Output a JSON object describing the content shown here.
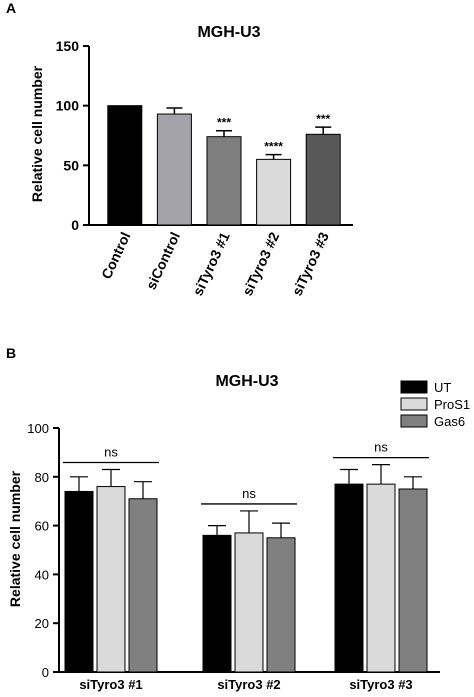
{
  "panels": [
    {
      "letter": "A",
      "chart_data": {
        "type": "bar",
        "title": "MGH-U3",
        "ylabel": "Relative cell number",
        "xlabel": "",
        "categories": [
          "Control",
          "siControl",
          "siTyro3 #1",
          "siTyro3 #2",
          "siTyro3 #3"
        ],
        "values": [
          100,
          93,
          74,
          55,
          76
        ],
        "errors": [
          0,
          5,
          5,
          4,
          6
        ],
        "significance": [
          "",
          "",
          "***",
          "****",
          "***"
        ],
        "colors": [
          "#000000",
          "#a3a3a9",
          "#7e7e7e",
          "#dadada",
          "#585858"
        ],
        "ylim": [
          0,
          150
        ],
        "yticks": [
          0,
          50,
          100,
          150
        ],
        "grid": false
      }
    },
    {
      "letter": "B",
      "chart_data": {
        "type": "bar",
        "title": "MGH-U3",
        "ylabel": "Relative cell number",
        "xlabel": "",
        "categories": [
          "siTyro3 #1",
          "siTyro3 #2",
          "siTyro3 #3"
        ],
        "series": [
          {
            "name": "UT",
            "color": "#000000",
            "values": [
              74,
              56,
              77
            ],
            "errors": [
              6,
              4,
              6
            ]
          },
          {
            "name": "ProS1",
            "color": "#dadada",
            "values": [
              76,
              57,
              77
            ],
            "errors": [
              7,
              9,
              8
            ]
          },
          {
            "name": "Gas6",
            "color": "#808080",
            "values": [
              71,
              55,
              75
            ],
            "errors": [
              7,
              6,
              5
            ]
          }
        ],
        "comparisons": [
          "ns",
          "ns",
          "ns"
        ],
        "ylim": [
          0,
          100
        ],
        "yticks": [
          0,
          20,
          40,
          60,
          80,
          100
        ],
        "legend_position": "top-right",
        "grid": false
      }
    }
  ]
}
